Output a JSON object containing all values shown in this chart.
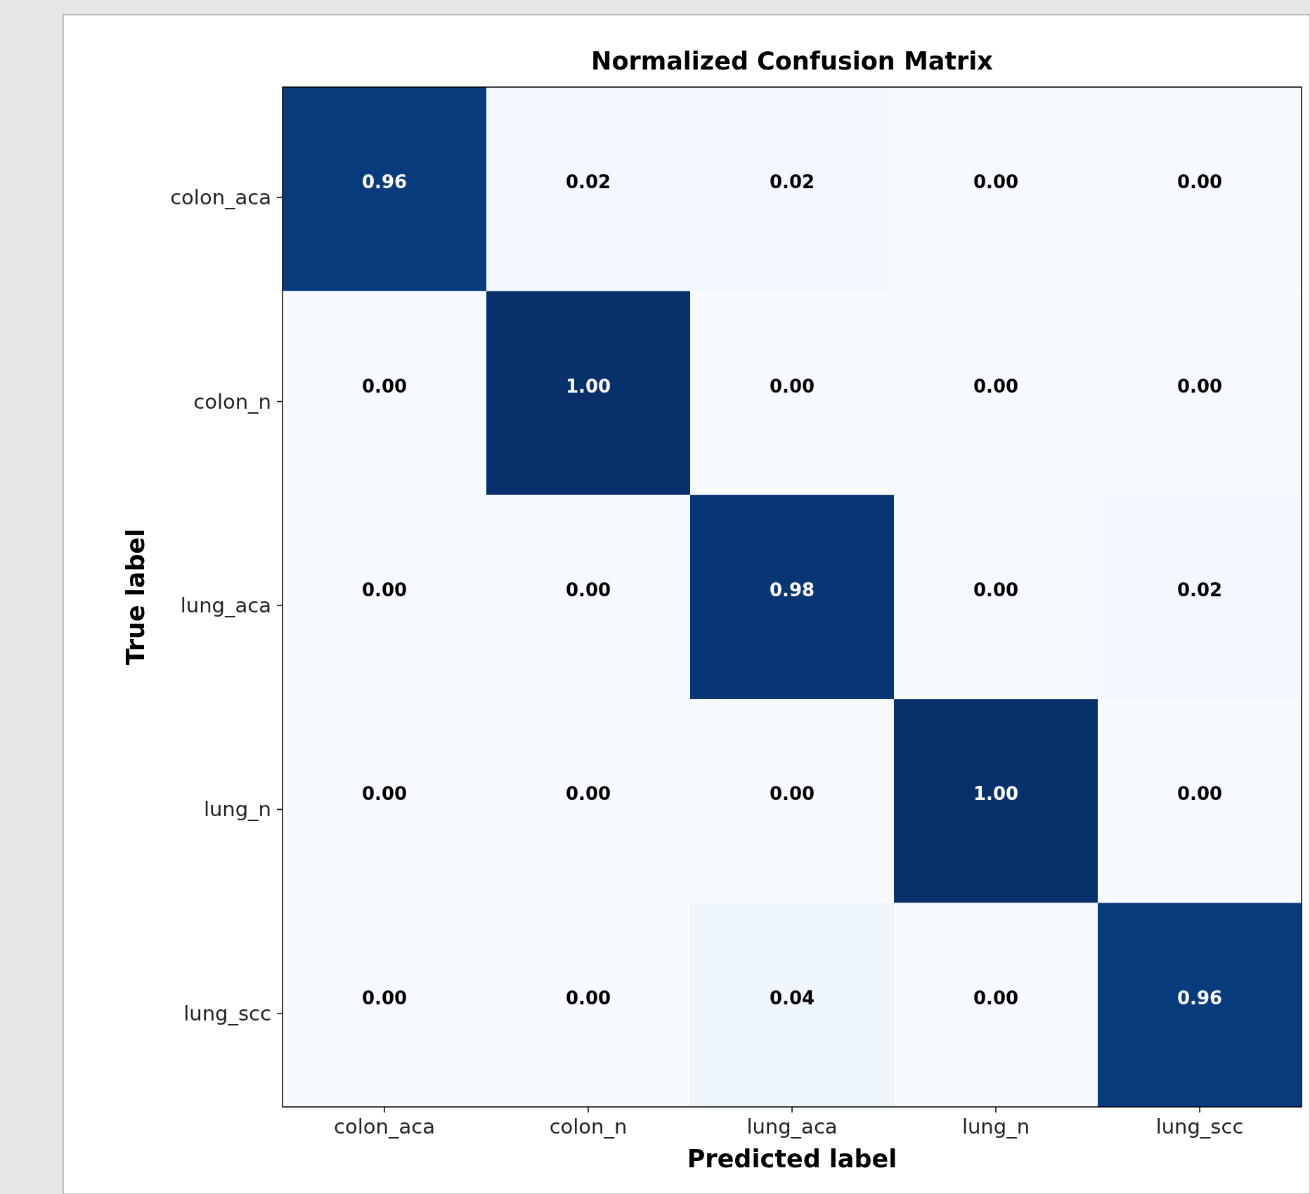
{
  "chart_data": {
    "type": "heatmap",
    "title": "Normalized Confusion Matrix",
    "xlabel": "Predicted label",
    "ylabel": "True label",
    "categories": [
      "colon_aca",
      "colon_n",
      "lung_aca",
      "lung_n",
      "lung_scc"
    ],
    "y_categories": [
      "colon_aca",
      "colon_n",
      "lung_aca",
      "lung_n",
      "lung_scc"
    ],
    "cells": [
      [
        0.96,
        0.02,
        0.02,
        0.0,
        0.0
      ],
      [
        0.0,
        1.0,
        0.0,
        0.0,
        0.0
      ],
      [
        0.0,
        0.0,
        0.98,
        0.0,
        0.02
      ],
      [
        0.0,
        0.0,
        0.0,
        1.0,
        0.0
      ],
      [
        0.0,
        0.0,
        0.04,
        0.0,
        0.96
      ]
    ],
    "cell_labels": [
      [
        "0.96",
        "0.02",
        "0.02",
        "0.00",
        "0.00"
      ],
      [
        "0.00",
        "1.00",
        "0.00",
        "0.00",
        "0.00"
      ],
      [
        "0.00",
        "0.00",
        "0.98",
        "0.00",
        "0.02"
      ],
      [
        "0.00",
        "0.00",
        "0.00",
        "1.00",
        "0.00"
      ],
      [
        "0.00",
        "0.00",
        "0.04",
        "0.00",
        "0.96"
      ]
    ]
  }
}
